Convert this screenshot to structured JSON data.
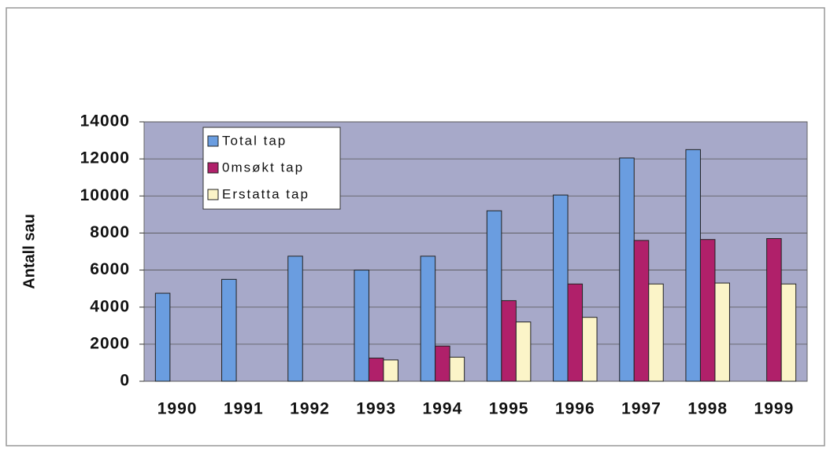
{
  "chart_data": {
    "type": "bar",
    "y_label": "Antall sau",
    "categories": [
      "1990",
      "1991",
      "1992",
      "1993",
      "1994",
      "1995",
      "1996",
      "1997",
      "1998",
      "1999"
    ],
    "series": [
      {
        "name": "Total tap",
        "color": "#6a9de0",
        "values": [
          4750,
          5500,
          6750,
          6000,
          6750,
          9200,
          10050,
          12050,
          12500,
          null
        ]
      },
      {
        "name": "0msøkt tap",
        "color": "#b0206a",
        "values": [
          null,
          null,
          null,
          1250,
          1900,
          4350,
          5250,
          7600,
          7650,
          7700
        ]
      },
      {
        "name": "Erstatta tap",
        "color": "#fbf4c8",
        "values": [
          null,
          null,
          null,
          1150,
          1300,
          3200,
          3450,
          5250,
          5300,
          5250
        ]
      }
    ],
    "ylim": [
      0,
      14000
    ],
    "yticks": [
      0,
      2000,
      4000,
      6000,
      8000,
      10000,
      12000,
      14000
    ],
    "grid": true,
    "legend": "top-left"
  }
}
